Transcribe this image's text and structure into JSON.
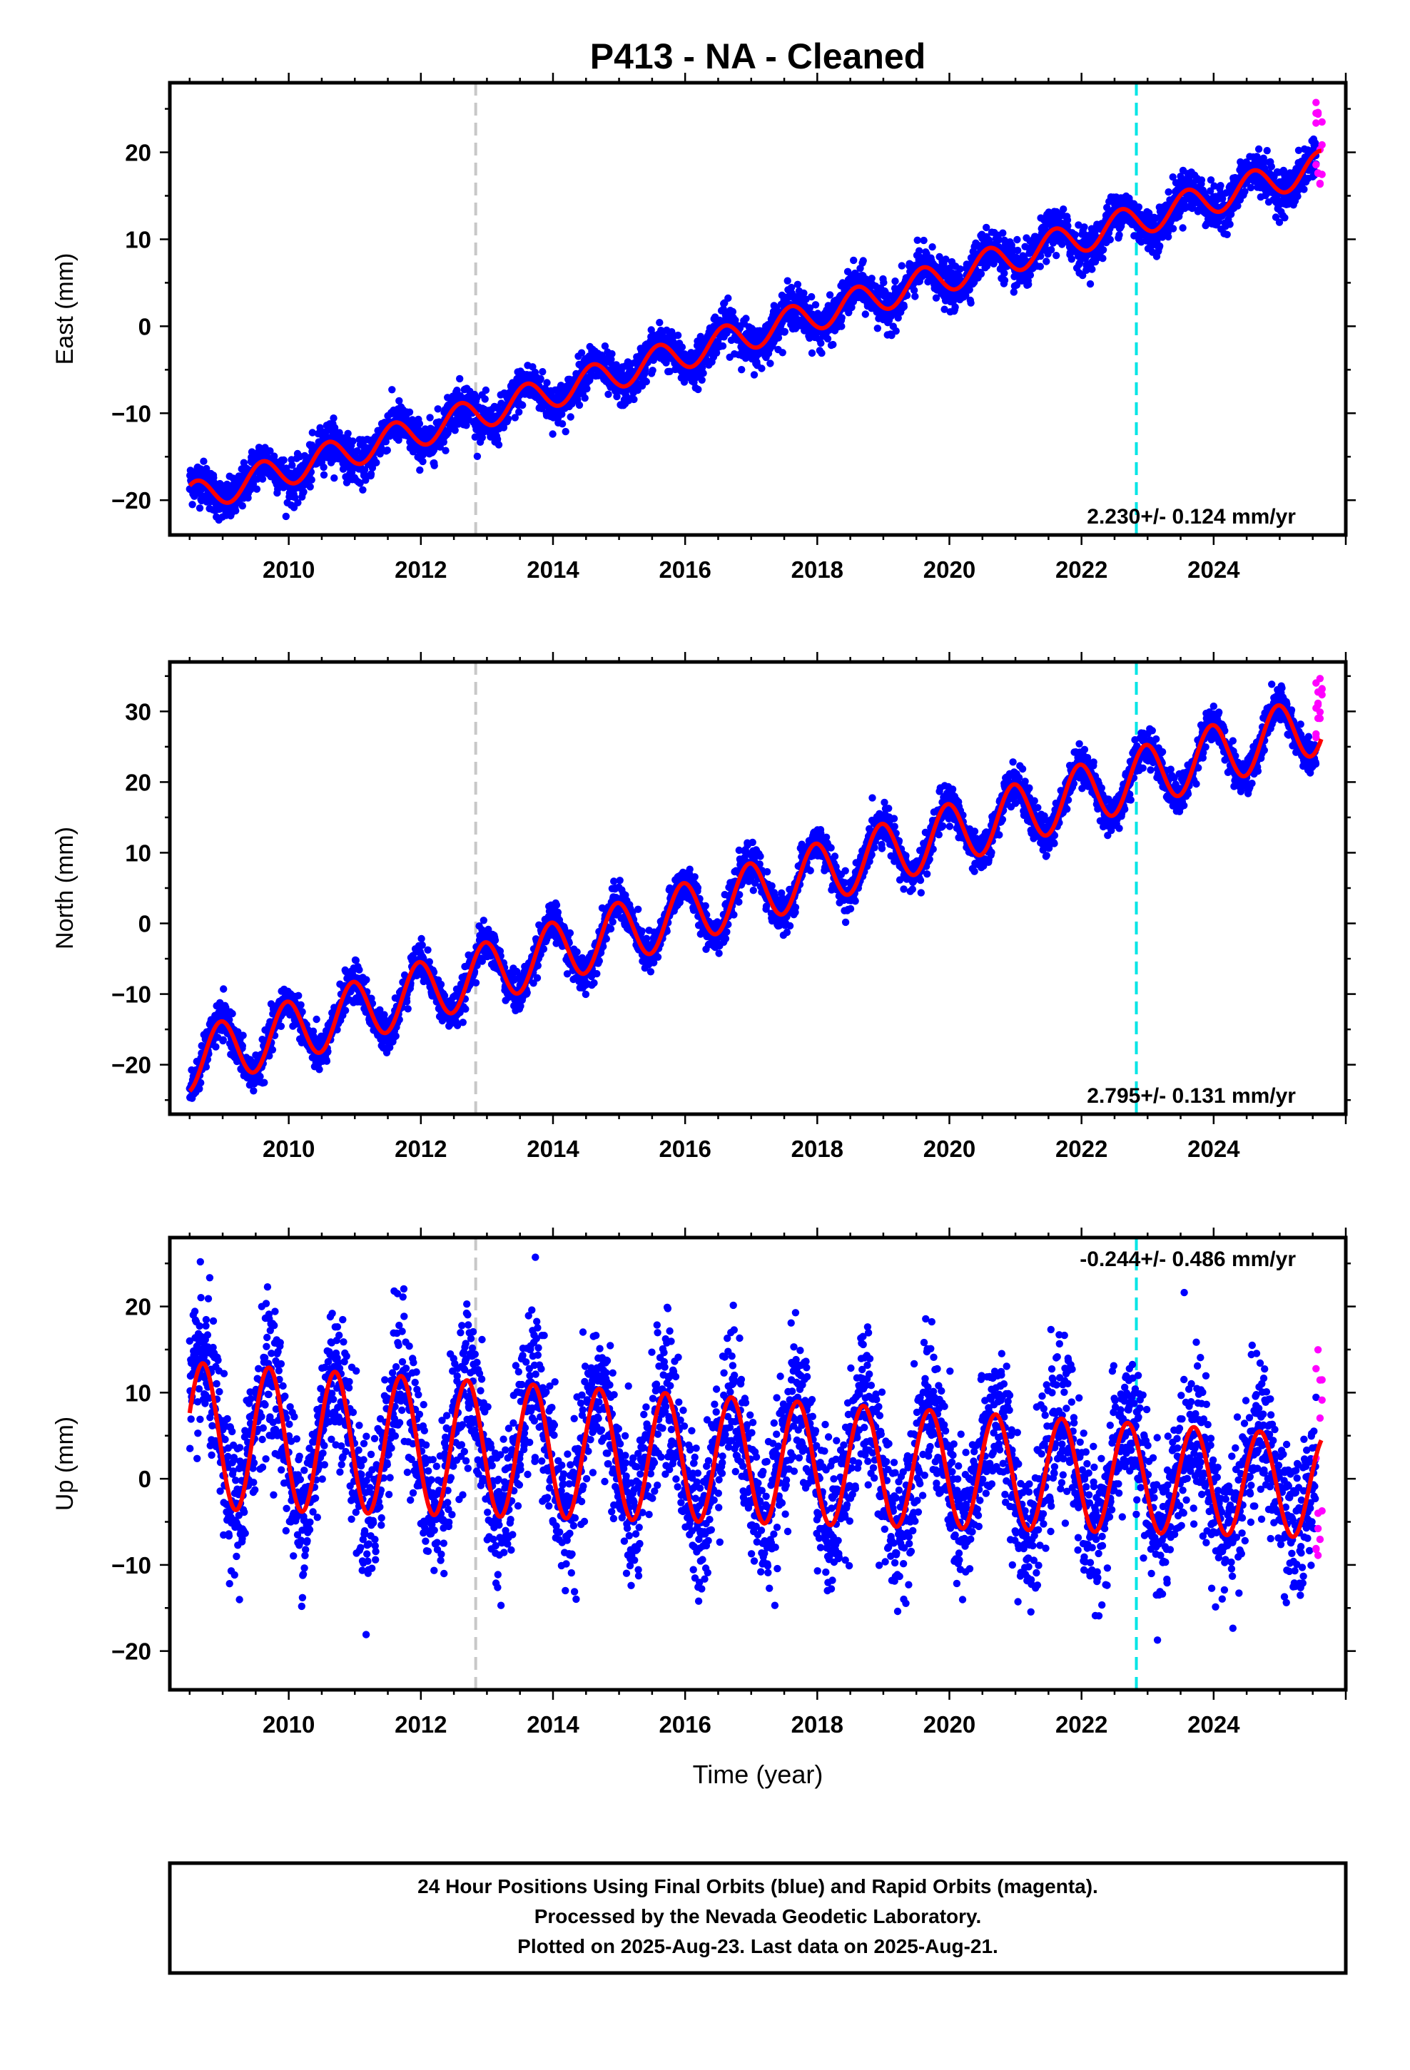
{
  "title": "P413  - NA - Cleaned",
  "x_axis_label": "Time (year)",
  "footer": {
    "line1": "24 Hour Positions Using Final Orbits (blue) and Rapid Orbits (magenta).",
    "line2": "Processed by the Nevada Geodetic Laboratory.",
    "line3": "Plotted on 2025-Aug-23. Last data on 2025-Aug-21."
  },
  "colors": {
    "final_orbits": "#0000ff",
    "rapid_orbits": "#ff00ff",
    "model_fit": "#ff0000",
    "event_line_gray": "#c8c8c8",
    "event_line_cyan": "#00e5e5"
  },
  "chart_data": [
    {
      "type": "scatter",
      "component": "East",
      "ylabel": "East (mm)",
      "xlim": [
        2008.2,
        2026.0
      ],
      "ylim": [
        -24,
        28
      ],
      "xticks": [
        2010,
        2012,
        2014,
        2016,
        2018,
        2020,
        2022,
        2024
      ],
      "yticks": [
        -20,
        -10,
        0,
        10,
        20
      ],
      "rate_label": "2.230+/- 0.124 mm/yr",
      "event_lines": [
        {
          "x": 2012.83,
          "color": "gray"
        },
        {
          "x": 2022.83,
          "color": "cyan"
        }
      ],
      "data_span": [
        2008.5,
        2025.63
      ],
      "series": [
        {
          "name": "Final Orbits",
          "color": "blue"
        },
        {
          "name": "Rapid Orbits",
          "color": "magenta",
          "x_range": [
            2025.55,
            2025.64
          ],
          "y_range": [
            16,
            27
          ]
        },
        {
          "name": "Model",
          "color": "red",
          "type": "line",
          "start_value": -19.8,
          "rate_mm_per_yr": 2.23,
          "seasonal_amplitude_mm": 1.8
        }
      ]
    },
    {
      "type": "scatter",
      "component": "North",
      "ylabel": "North (mm)",
      "xlim": [
        2008.2,
        2026.0
      ],
      "ylim": [
        -27,
        37
      ],
      "xticks": [
        2010,
        2012,
        2014,
        2016,
        2018,
        2020,
        2022,
        2024
      ],
      "yticks": [
        -20,
        -10,
        0,
        10,
        20,
        30
      ],
      "rate_label": "2.795+/- 0.131 mm/yr",
      "event_lines": [
        {
          "x": 2012.83,
          "color": "gray"
        },
        {
          "x": 2022.83,
          "color": "cyan"
        }
      ],
      "data_span": [
        2008.5,
        2025.63
      ],
      "series": [
        {
          "name": "Final Orbits",
          "color": "blue"
        },
        {
          "name": "Rapid Orbits",
          "color": "magenta",
          "x_range": [
            2025.55,
            2025.64
          ],
          "y_range": [
            26,
            35
          ]
        },
        {
          "name": "Model",
          "color": "red",
          "type": "line",
          "start_value": -19.5,
          "rate_mm_per_yr": 2.795,
          "seasonal_amplitude_mm": 4.3
        }
      ]
    },
    {
      "type": "scatter",
      "component": "Up",
      "ylabel": "Up (mm)",
      "xlim": [
        2008.2,
        2026.0
      ],
      "ylim": [
        -24.5,
        28
      ],
      "xticks": [
        2010,
        2012,
        2014,
        2016,
        2018,
        2020,
        2022,
        2024
      ],
      "yticks": [
        -20,
        -10,
        0,
        10,
        20
      ],
      "rate_label": "-0.244+/- 0.486 mm/yr",
      "event_lines": [
        {
          "x": 2012.83,
          "color": "gray"
        },
        {
          "x": 2022.83,
          "color": "cyan"
        }
      ],
      "data_span": [
        2008.5,
        2025.63
      ],
      "series": [
        {
          "name": "Final Orbits",
          "color": "blue"
        },
        {
          "name": "Rapid Orbits",
          "color": "magenta",
          "x_range": [
            2025.55,
            2025.64
          ],
          "y_range": [
            -9,
            17
          ]
        },
        {
          "name": "Model",
          "color": "red",
          "type": "line",
          "start_value": 5.0,
          "rate_mm_per_yr": -0.244,
          "seasonal_amplitude_mm": 8.5
        }
      ]
    }
  ]
}
